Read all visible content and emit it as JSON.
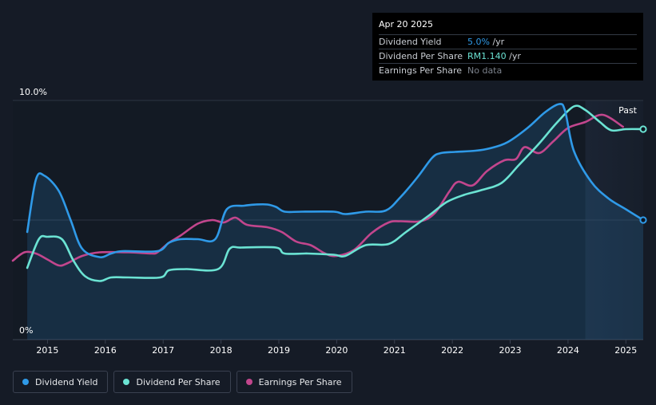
{
  "tooltip": {
    "date": "Apr 20 2025",
    "rows": [
      {
        "label": "Dividend Yield",
        "value": "5.0%",
        "unit": " /yr"
      },
      {
        "label": "Dividend Per Share",
        "value": "RM1.140",
        "unit": " /yr"
      },
      {
        "label": "Earnings Per Share",
        "value": "No data"
      }
    ]
  },
  "legend": [
    {
      "label": "Dividend Yield",
      "color": "#2f9ae8"
    },
    {
      "label": "Dividend Per Share",
      "color": "#6be3d3"
    },
    {
      "label": "Earnings Per Share",
      "color": "#c2468d"
    }
  ],
  "chart_data": {
    "type": "line",
    "y_ticks": [
      "10.0%",
      "0%"
    ],
    "ylim": [
      0,
      10
    ],
    "xlim": [
      2014.4,
      2025.3
    ],
    "x_ticks": [
      "2015",
      "2016",
      "2017",
      "2018",
      "2019",
      "2020",
      "2021",
      "2022",
      "2023",
      "2024",
      "2025"
    ],
    "past_label": "Past",
    "past_start": 2024.3,
    "grid": true,
    "series": [
      {
        "name": "Dividend Yield",
        "color": "#2f9ae8",
        "fill": true,
        "points": [
          [
            2014.65,
            4.5
          ],
          [
            2014.8,
            6.7
          ],
          [
            2014.95,
            6.85
          ],
          [
            2015.2,
            6.2
          ],
          [
            2015.4,
            5.0
          ],
          [
            2015.6,
            3.8
          ],
          [
            2015.9,
            3.45
          ],
          [
            2016.1,
            3.6
          ],
          [
            2016.3,
            3.7
          ],
          [
            2016.9,
            3.7
          ],
          [
            2017.1,
            4.05
          ],
          [
            2017.3,
            4.2
          ],
          [
            2017.6,
            4.2
          ],
          [
            2017.9,
            4.2
          ],
          [
            2018.1,
            5.45
          ],
          [
            2018.4,
            5.6
          ],
          [
            2018.6,
            5.65
          ],
          [
            2018.8,
            5.65
          ],
          [
            2018.95,
            5.55
          ],
          [
            2019.1,
            5.35
          ],
          [
            2019.4,
            5.35
          ],
          [
            2019.95,
            5.35
          ],
          [
            2020.15,
            5.25
          ],
          [
            2020.5,
            5.35
          ],
          [
            2020.85,
            5.4
          ],
          [
            2021.1,
            5.95
          ],
          [
            2021.4,
            6.8
          ],
          [
            2021.65,
            7.6
          ],
          [
            2021.8,
            7.8
          ],
          [
            2022.05,
            7.85
          ],
          [
            2022.4,
            7.9
          ],
          [
            2022.65,
            8.0
          ],
          [
            2022.95,
            8.25
          ],
          [
            2023.3,
            8.85
          ],
          [
            2023.6,
            9.5
          ],
          [
            2023.85,
            9.85
          ],
          [
            2023.95,
            9.55
          ],
          [
            2024.1,
            7.9
          ],
          [
            2024.4,
            6.6
          ],
          [
            2024.7,
            5.9
          ],
          [
            2025.0,
            5.45
          ],
          [
            2025.3,
            5.0
          ]
        ]
      },
      {
        "name": "Dividend Per Share",
        "color": "#6be3d3",
        "fill": false,
        "points": [
          [
            2014.65,
            3.0
          ],
          [
            2014.85,
            4.2
          ],
          [
            2015.0,
            4.3
          ],
          [
            2015.25,
            4.2
          ],
          [
            2015.45,
            3.3
          ],
          [
            2015.65,
            2.65
          ],
          [
            2015.9,
            2.45
          ],
          [
            2016.1,
            2.6
          ],
          [
            2016.4,
            2.6
          ],
          [
            2016.95,
            2.6
          ],
          [
            2017.1,
            2.9
          ],
          [
            2017.4,
            2.95
          ],
          [
            2017.95,
            2.95
          ],
          [
            2018.15,
            3.8
          ],
          [
            2018.35,
            3.85
          ],
          [
            2018.95,
            3.85
          ],
          [
            2019.1,
            3.6
          ],
          [
            2019.5,
            3.6
          ],
          [
            2019.95,
            3.55
          ],
          [
            2020.15,
            3.5
          ],
          [
            2020.5,
            3.95
          ],
          [
            2020.9,
            4.0
          ],
          [
            2021.2,
            4.5
          ],
          [
            2021.6,
            5.2
          ],
          [
            2021.9,
            5.75
          ],
          [
            2022.2,
            6.05
          ],
          [
            2022.5,
            6.25
          ],
          [
            2022.85,
            6.55
          ],
          [
            2023.15,
            7.3
          ],
          [
            2023.5,
            8.2
          ],
          [
            2023.8,
            9.05
          ],
          [
            2024.1,
            9.75
          ],
          [
            2024.3,
            9.6
          ],
          [
            2024.55,
            9.1
          ],
          [
            2024.75,
            8.75
          ],
          [
            2025.0,
            8.8
          ],
          [
            2025.3,
            8.8
          ]
        ]
      },
      {
        "name": "Earnings Per Share",
        "color": "#c2468d",
        "fill": false,
        "points": [
          [
            2014.4,
            3.3
          ],
          [
            2014.6,
            3.65
          ],
          [
            2014.8,
            3.6
          ],
          [
            2015.0,
            3.35
          ],
          [
            2015.2,
            3.1
          ],
          [
            2015.35,
            3.2
          ],
          [
            2015.6,
            3.5
          ],
          [
            2015.9,
            3.65
          ],
          [
            2016.4,
            3.65
          ],
          [
            2016.8,
            3.6
          ],
          [
            2016.9,
            3.65
          ],
          [
            2017.1,
            4.05
          ],
          [
            2017.3,
            4.35
          ],
          [
            2017.6,
            4.85
          ],
          [
            2017.85,
            5.0
          ],
          [
            2018.05,
            4.9
          ],
          [
            2018.25,
            5.1
          ],
          [
            2018.45,
            4.8
          ],
          [
            2018.8,
            4.7
          ],
          [
            2019.05,
            4.5
          ],
          [
            2019.3,
            4.1
          ],
          [
            2019.55,
            3.95
          ],
          [
            2019.8,
            3.6
          ],
          [
            2020.0,
            3.5
          ],
          [
            2020.3,
            3.75
          ],
          [
            2020.6,
            4.45
          ],
          [
            2020.9,
            4.9
          ],
          [
            2021.1,
            4.95
          ],
          [
            2021.45,
            4.95
          ],
          [
            2021.7,
            5.3
          ],
          [
            2021.95,
            6.2
          ],
          [
            2022.1,
            6.6
          ],
          [
            2022.35,
            6.45
          ],
          [
            2022.6,
            7.05
          ],
          [
            2022.9,
            7.5
          ],
          [
            2023.1,
            7.55
          ],
          [
            2023.25,
            8.05
          ],
          [
            2023.5,
            7.8
          ],
          [
            2023.75,
            8.3
          ],
          [
            2024.0,
            8.85
          ],
          [
            2024.3,
            9.1
          ],
          [
            2024.6,
            9.4
          ],
          [
            2024.95,
            8.9
          ]
        ]
      }
    ]
  }
}
